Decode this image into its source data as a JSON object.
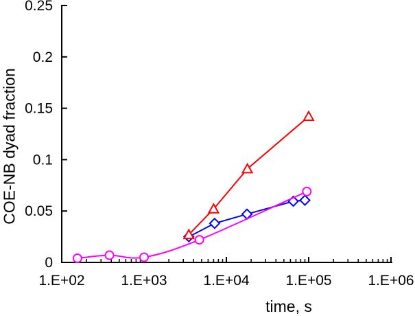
{
  "chart_data": {
    "type": "line",
    "title": "",
    "xlabel": "time, s",
    "ylabel": "COE-NB dyad fraction",
    "grid": false,
    "legend": "none",
    "background_color": "#FFFFFF",
    "axis_color": "#000000",
    "x_axis": {
      "scale": "log",
      "min": 100,
      "max": 1000000,
      "tick_values": [
        100,
        1000,
        10000,
        100000,
        1000000
      ],
      "tick_labels": [
        "1.E+02",
        "1.E+03",
        "1.E+04",
        "1.E+05",
        "1.E+06"
      ],
      "minor_log_ticks": true
    },
    "y_axis": {
      "scale": "linear",
      "min": 0,
      "max": 0.25,
      "tick_values": [
        0,
        0.05,
        0.1,
        0.15,
        0.2,
        0.25
      ],
      "tick_labels": [
        "0",
        "0.05",
        "0.1",
        "0.15",
        "0.2",
        "0.25"
      ]
    },
    "series": [
      {
        "name": "blue-diamond-series",
        "color": "#0000FF",
        "marker": "diamond",
        "smooth": false,
        "x": [
          3500,
          7200,
          17800,
          65000,
          90000
        ],
        "y": [
          0.025,
          0.038,
          0.047,
          0.0595,
          0.0605
        ]
      },
      {
        "name": "magenta-circle-series",
        "color": "#FF00FF",
        "marker": "circle",
        "smooth": true,
        "x": [
          155,
          380,
          1000,
          4700,
          95000
        ],
        "y": [
          0.004,
          0.007,
          0.005,
          0.022,
          0.069
        ]
      },
      {
        "name": "red-triangle-series",
        "color": "#FF0000",
        "marker": "triangle",
        "smooth": false,
        "x": [
          3500,
          7000,
          18000,
          100000
        ],
        "y": [
          0.027,
          0.052,
          0.091,
          0.142
        ]
      }
    ]
  }
}
